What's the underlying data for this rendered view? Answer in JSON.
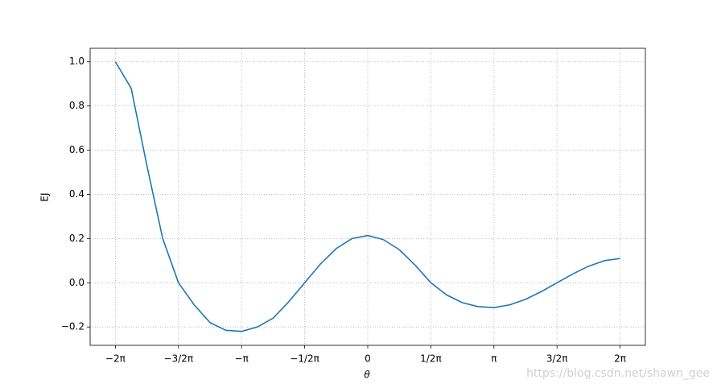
{
  "chart_data": {
    "type": "line",
    "x_label": "θ",
    "y_label": "EJ",
    "watermark": "https://blog.csdn.net/shawn_gee",
    "x": [
      -6.283,
      -5.89,
      -5.498,
      -5.105,
      -4.712,
      -4.32,
      -3.927,
      -3.534,
      -3.142,
      -2.749,
      -2.356,
      -1.963,
      -1.571,
      -1.178,
      -0.785,
      -0.393,
      0,
      0.393,
      0.785,
      1.178,
      1.571,
      1.963,
      2.356,
      2.749,
      3.142,
      3.534,
      3.927,
      4.32,
      4.712,
      5.105,
      5.498,
      5.89,
      6.283
    ],
    "series": [
      {
        "name": "EJ",
        "color": "#1f77b4",
        "values": [
          1.0,
          0.88,
          0.53,
          0.2,
          0.0,
          -0.1,
          -0.18,
          -0.215,
          -0.22,
          -0.2,
          -0.16,
          -0.085,
          0.0,
          0.085,
          0.155,
          0.2,
          0.214,
          0.195,
          0.15,
          0.08,
          0.0,
          -0.055,
          -0.09,
          -0.108,
          -0.112,
          -0.1,
          -0.075,
          -0.04,
          0.0,
          0.04,
          0.075,
          0.1,
          0.11
        ]
      }
    ],
    "xlim": [
      -6.912,
      6.912
    ],
    "ylim": [
      -0.283,
      1.061
    ],
    "xticks": [
      {
        "value": -6.283,
        "label": "−2π"
      },
      {
        "value": -4.712,
        "label": "−3/2π"
      },
      {
        "value": -3.142,
        "label": "−π"
      },
      {
        "value": -1.571,
        "label": "−1/2π"
      },
      0,
      {
        "value": 1.571,
        "label": "1/2π"
      },
      {
        "value": 3.142,
        "label": "π"
      },
      {
        "value": 4.712,
        "label": "3/2π"
      },
      {
        "value": 6.283,
        "label": "2π"
      }
    ],
    "yticks": [
      {
        "value": -0.2,
        "label": "−0.2"
      },
      {
        "value": 0,
        "label": "0.0"
      },
      {
        "value": 0.2,
        "label": "0.2"
      },
      {
        "value": 0.4,
        "label": "0.4"
      },
      {
        "value": 0.6,
        "label": "0.6"
      },
      {
        "value": 0.8,
        "label": "0.8"
      },
      {
        "value": 1.0,
        "label": "1.0"
      }
    ],
    "grid": true
  }
}
